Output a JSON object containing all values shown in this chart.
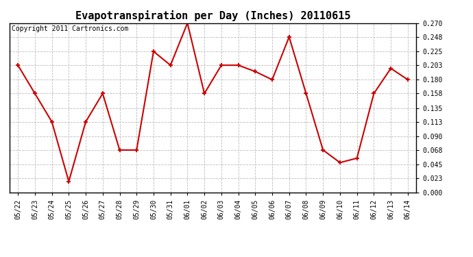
{
  "title": "Evapotranspiration per Day (Inches) 20110615",
  "copyright_text": "Copyright 2011 Cartronics.com",
  "dates": [
    "05/22",
    "05/23",
    "05/24",
    "05/25",
    "05/26",
    "05/27",
    "05/28",
    "05/29",
    "05/30",
    "05/31",
    "06/01",
    "06/02",
    "06/03",
    "06/04",
    "06/05",
    "06/06",
    "06/07",
    "06/08",
    "06/09",
    "06/10",
    "06/11",
    "06/12",
    "06/13",
    "06/14"
  ],
  "values": [
    0.203,
    0.158,
    0.113,
    0.018,
    0.113,
    0.158,
    0.068,
    0.068,
    0.225,
    0.203,
    0.27,
    0.158,
    0.203,
    0.203,
    0.193,
    0.18,
    0.248,
    0.158,
    0.068,
    0.048,
    0.055,
    0.158,
    0.198,
    0.18
  ],
  "line_color": "#cc0000",
  "marker": "+",
  "marker_size": 5,
  "marker_linewidth": 1.5,
  "line_width": 1.5,
  "ylim": [
    0.0,
    0.27
  ],
  "yticks": [
    0.0,
    0.023,
    0.045,
    0.068,
    0.09,
    0.113,
    0.135,
    0.158,
    0.18,
    0.203,
    0.225,
    0.248,
    0.27
  ],
  "grid_color": "#bbbbbb",
  "grid_style": "--",
  "background_color": "#ffffff",
  "plot_bg_color": "#ffffff",
  "title_fontsize": 11,
  "tick_fontsize": 7,
  "copyright_fontsize": 7
}
